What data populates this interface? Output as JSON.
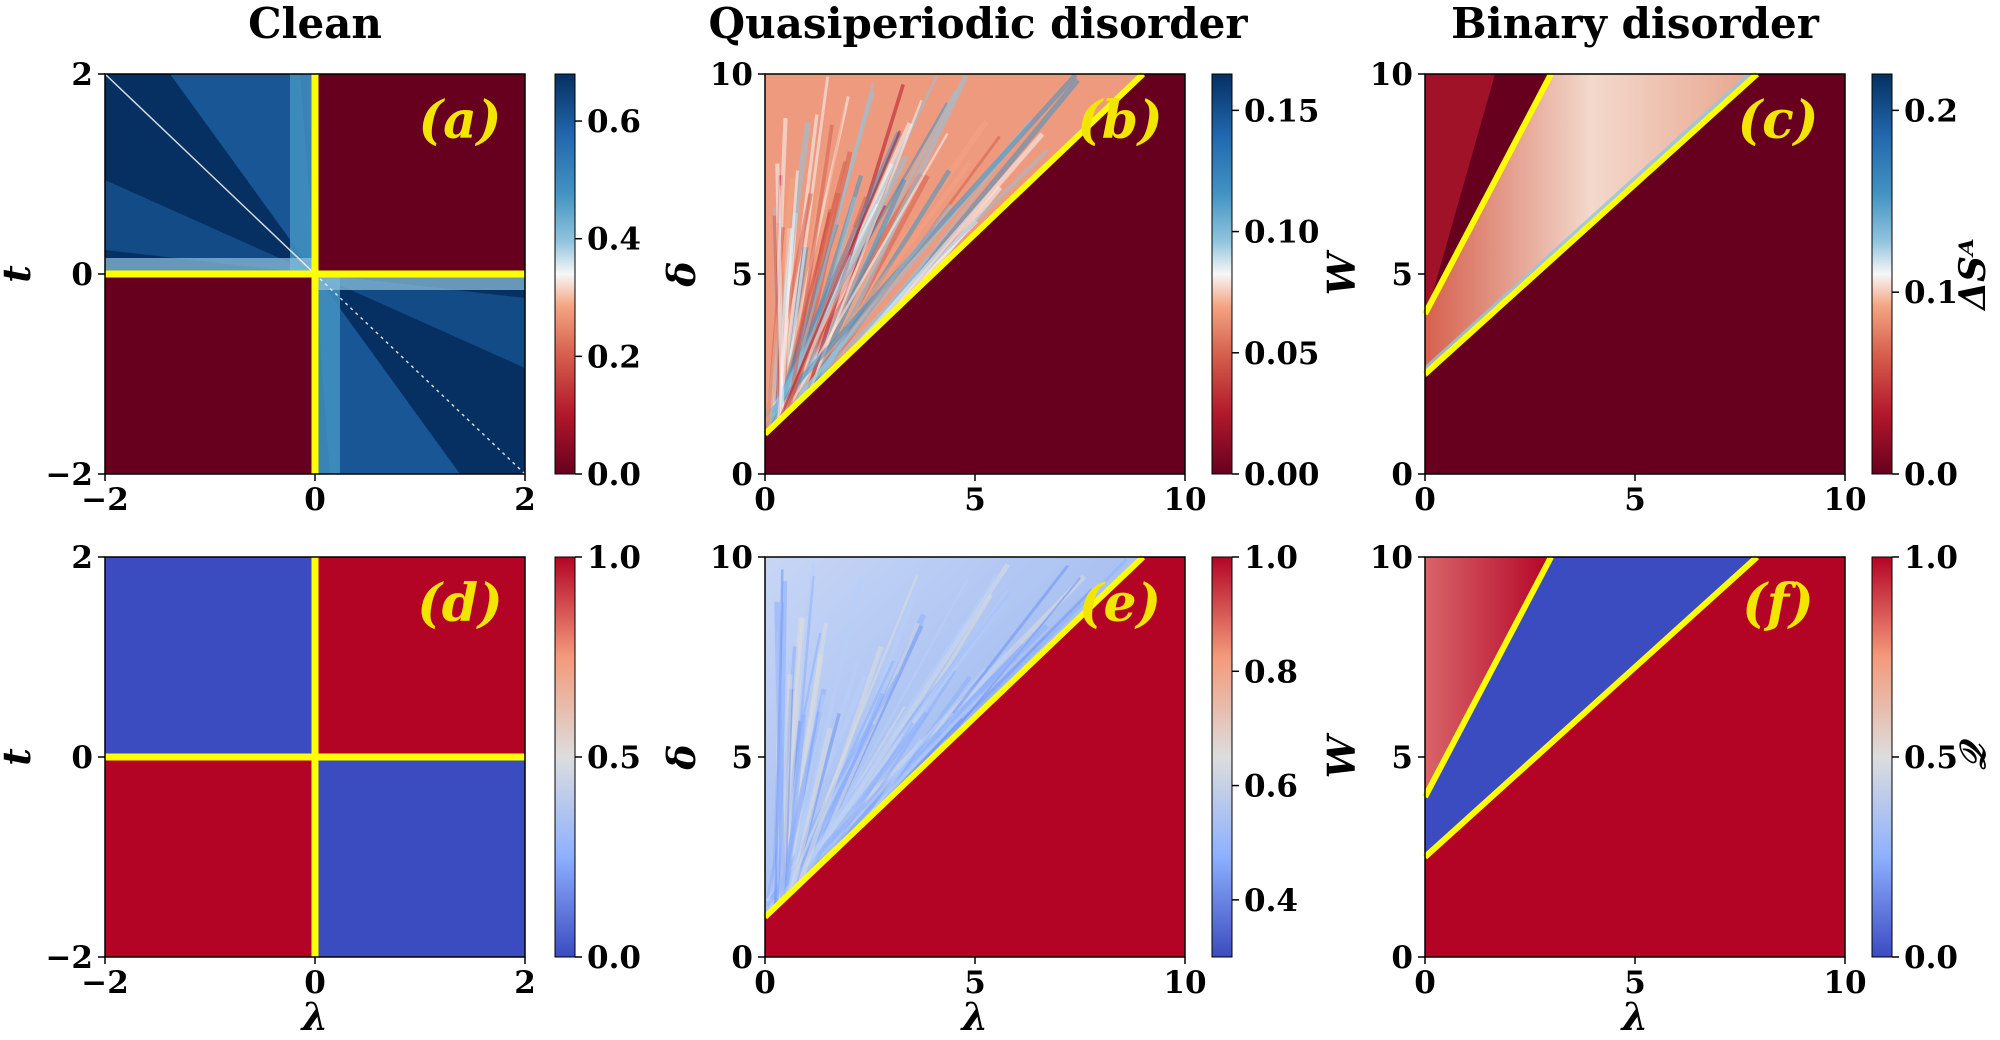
{
  "column_titles": [
    "Clean",
    "Quasiperiodic disorder",
    "Binary disorder"
  ],
  "colors": {
    "dark_red": "#67001f",
    "red": "#b2182b",
    "blue": "#3a4cc0",
    "dark_blue": "#053061",
    "critical_line": "#ffff00"
  },
  "chart_data": [
    {
      "id": "a",
      "label": "(a)",
      "type": "heatmap",
      "title": "Clean",
      "xlabel": "",
      "ylabel": "t",
      "xlim": [
        -2,
        2
      ],
      "ylim": [
        -2,
        2
      ],
      "xticks": [
        -2,
        0,
        2
      ],
      "xticklabels": [
        "−2",
        "0",
        "2"
      ],
      "yticks": [
        -2,
        0,
        2
      ],
      "yticklabels": [
        "−2",
        "0",
        "2"
      ],
      "colorbar": {
        "min": 0,
        "max": 0.68,
        "ticks": [
          0,
          0.2,
          0.4,
          0.6
        ],
        "ticklabels": [
          "0.0",
          "0.2",
          "0.4",
          "0.6"
        ],
        "cmap": "RdBu",
        "label": ""
      },
      "regions": "quadrants x*y>0: 0.0; x*y<0: up to ~0.68",
      "critical_lines": [
        [
          [
            0,
            -2
          ],
          [
            0,
            2
          ]
        ],
        [
          [
            -2,
            0
          ],
          [
            2,
            0
          ]
        ]
      ]
    },
    {
      "id": "b",
      "label": "(b)",
      "type": "heatmap",
      "title": "Quasiperiodic disorder",
      "xlabel": "",
      "ylabel": "δ",
      "xlim": [
        0,
        10
      ],
      "ylim": [
        0,
        10
      ],
      "xticks": [
        0,
        5,
        10
      ],
      "xticklabels": [
        "0",
        "5",
        "10"
      ],
      "yticks": [
        0,
        5,
        10
      ],
      "yticklabels": [
        "0",
        "5",
        "10"
      ],
      "colorbar": {
        "min": 0,
        "max": 0.165,
        "ticks": [
          0,
          0.05,
          0.1,
          0.15
        ],
        "ticklabels": [
          "0.00",
          "0.05",
          "0.10",
          "0.15"
        ],
        "cmap": "RdBu",
        "label": ""
      },
      "regions": "below line δ = 1 + λ: 0.0; above: fluctuating 0.02-0.16",
      "critical_lines": [
        [
          [
            0,
            1
          ],
          [
            9,
            10
          ]
        ]
      ]
    },
    {
      "id": "c",
      "label": "(c)",
      "type": "heatmap",
      "title": "Binary disorder",
      "xlabel": "",
      "ylabel": "W",
      "xlim": [
        0,
        10
      ],
      "ylim": [
        0,
        10
      ],
      "xticks": [
        0,
        5,
        10
      ],
      "xticklabels": [
        "0",
        "5",
        "10"
      ],
      "yticks": [
        0,
        5,
        10
      ],
      "yticklabels": [
        "0",
        "5",
        "10"
      ],
      "colorbar": {
        "min": 0,
        "max": 0.22,
        "ticks": [
          0,
          0.1,
          0.2
        ],
        "ticklabels": [
          "0.0",
          "0.1",
          "0.2"
        ],
        "cmap": "RdBu",
        "label": "ΔSᴬ"
      },
      "regions": "wedge between W = 4 + 2λ and W = 2.5 + 0.95λ: ~0.08; elsewhere: 0.0",
      "critical_lines": [
        [
          [
            0,
            4
          ],
          [
            3,
            10
          ]
        ],
        [
          [
            0,
            2.5
          ],
          [
            7.9,
            10
          ]
        ]
      ]
    },
    {
      "id": "d",
      "label": "(d)",
      "type": "heatmap",
      "title": "",
      "xlabel": "λ",
      "ylabel": "t",
      "xlim": [
        -2,
        2
      ],
      "ylim": [
        -2,
        2
      ],
      "xticks": [
        -2,
        0,
        2
      ],
      "xticklabels": [
        "−2",
        "0",
        "2"
      ],
      "yticks": [
        -2,
        0,
        2
      ],
      "yticklabels": [
        "−2",
        "0",
        "2"
      ],
      "colorbar": {
        "min": 0,
        "max": 1,
        "ticks": [
          0,
          0.5,
          1
        ],
        "ticklabels": [
          "0.0",
          "0.5",
          "1.0"
        ],
        "cmap": "coolwarm",
        "label": ""
      },
      "regions": "x*y>0: 1.0; x*y<0: 0.0",
      "critical_lines": [
        [
          [
            0,
            -2
          ],
          [
            0,
            2
          ]
        ],
        [
          [
            -2,
            0
          ],
          [
            2,
            0
          ]
        ]
      ]
    },
    {
      "id": "e",
      "label": "(e)",
      "type": "heatmap",
      "title": "",
      "xlabel": "λ",
      "ylabel": "δ",
      "xlim": [
        0,
        10
      ],
      "ylim": [
        0,
        10
      ],
      "xticks": [
        0,
        5,
        10
      ],
      "xticklabels": [
        "0",
        "5",
        "10"
      ],
      "yticks": [
        0,
        5,
        10
      ],
      "yticklabels": [
        "0",
        "5",
        "10"
      ],
      "colorbar": {
        "min": 0.3,
        "max": 1,
        "ticks": [
          0.4,
          0.6,
          0.8,
          1
        ],
        "ticklabels": [
          "0.4",
          "0.6",
          "0.8",
          "1.0"
        ],
        "cmap": "coolwarm",
        "label": ""
      },
      "regions": "below line δ = 1 + λ: 1.0; above: ~0.35-0.6",
      "critical_lines": [
        [
          [
            0,
            1
          ],
          [
            9,
            10
          ]
        ]
      ]
    },
    {
      "id": "f",
      "label": "(f)",
      "type": "heatmap",
      "title": "",
      "xlabel": "λ",
      "ylabel": "W",
      "xlim": [
        0,
        10
      ],
      "ylim": [
        0,
        10
      ],
      "xticks": [
        0,
        5,
        10
      ],
      "xticklabels": [
        "0",
        "5",
        "10"
      ],
      "yticks": [
        0,
        5,
        10
      ],
      "yticklabels": [
        "0",
        "5",
        "10"
      ],
      "colorbar": {
        "min": 0,
        "max": 1,
        "ticks": [
          0,
          0.5,
          1
        ],
        "ticklabels": [
          "0.0",
          "0.5",
          "1.0"
        ],
        "cmap": "coolwarm",
        "label": "𝒬"
      },
      "regions": "wedge between W = 4 + 2λ and W = 2.5 + 0.95λ: 0.0; elsewhere: 1.0",
      "critical_lines": [
        [
          [
            0,
            4
          ],
          [
            3,
            10
          ]
        ],
        [
          [
            0,
            2.5
          ],
          [
            7.9,
            10
          ]
        ]
      ]
    }
  ]
}
